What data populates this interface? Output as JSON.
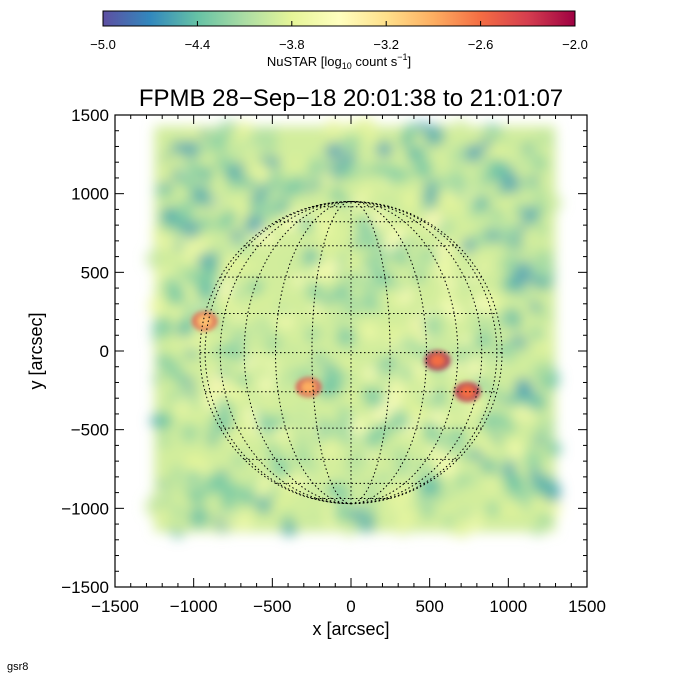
{
  "chart_data": {
    "type": "heatmap",
    "title": "FPMB 28−Sep−18 20:01:38 to 21:01:07",
    "xlabel": "x [arcsec]",
    "ylabel": "y [arcsec]",
    "xlim": [
      -1500,
      1500
    ],
    "ylim": [
      -1500,
      1500
    ],
    "xticks": [
      -1500,
      -1000,
      -500,
      0,
      500,
      1000,
      1500
    ],
    "yticks": [
      -1500,
      -1000,
      -500,
      0,
      500,
      1000,
      1500
    ],
    "xtick_labels": [
      "−1500",
      "−1000",
      "−500",
      "0",
      "500",
      "1000",
      "1500"
    ],
    "ytick_labels": [
      "−1500",
      "−1000",
      "−500",
      "0",
      "500",
      "1000",
      "1500"
    ],
    "colorbar": {
      "label_main": "NuSTAR [log",
      "label_sub": "10",
      "label_rest": " count s",
      "label_sup": "−1",
      "label_close": "]",
      "range": [
        -5.0,
        -2.0
      ],
      "ticks": [
        -5.0,
        -4.4,
        -3.8,
        -3.2,
        -2.6,
        -2.0
      ],
      "tick_labels": [
        "−5.0",
        "−4.4",
        "−3.8",
        "−3.2",
        "−2.6",
        "−2.0"
      ],
      "colormap": [
        "#5e4fa2",
        "#3288bd",
        "#66c2a5",
        "#abdda4",
        "#e6f598",
        "#ffffbf",
        "#fee08b",
        "#fdae61",
        "#f46d43",
        "#d53e4f",
        "#9e0142"
      ],
      "position": "top"
    },
    "map_extent": {
      "x": [
        -1250,
        1300
      ],
      "y": [
        -1150,
        1430
      ]
    },
    "background_level": -3.9,
    "hotspots": [
      {
        "x": -930,
        "y": 190,
        "level": -3.0
      },
      {
        "x": -270,
        "y": -230,
        "level": -2.9
      },
      {
        "x": 550,
        "y": -60,
        "level": -2.6
      },
      {
        "x": 740,
        "y": -260,
        "level": -2.6
      }
    ],
    "solar_disk": {
      "center": [
        0,
        -10
      ],
      "radius": 960,
      "grid_spacing_deg": 15,
      "style": "dotted"
    },
    "grid": false
  },
  "footer": {
    "text": "gsr8"
  },
  "colors": {
    "disk_grid": "#000000",
    "frame": "#000000"
  }
}
